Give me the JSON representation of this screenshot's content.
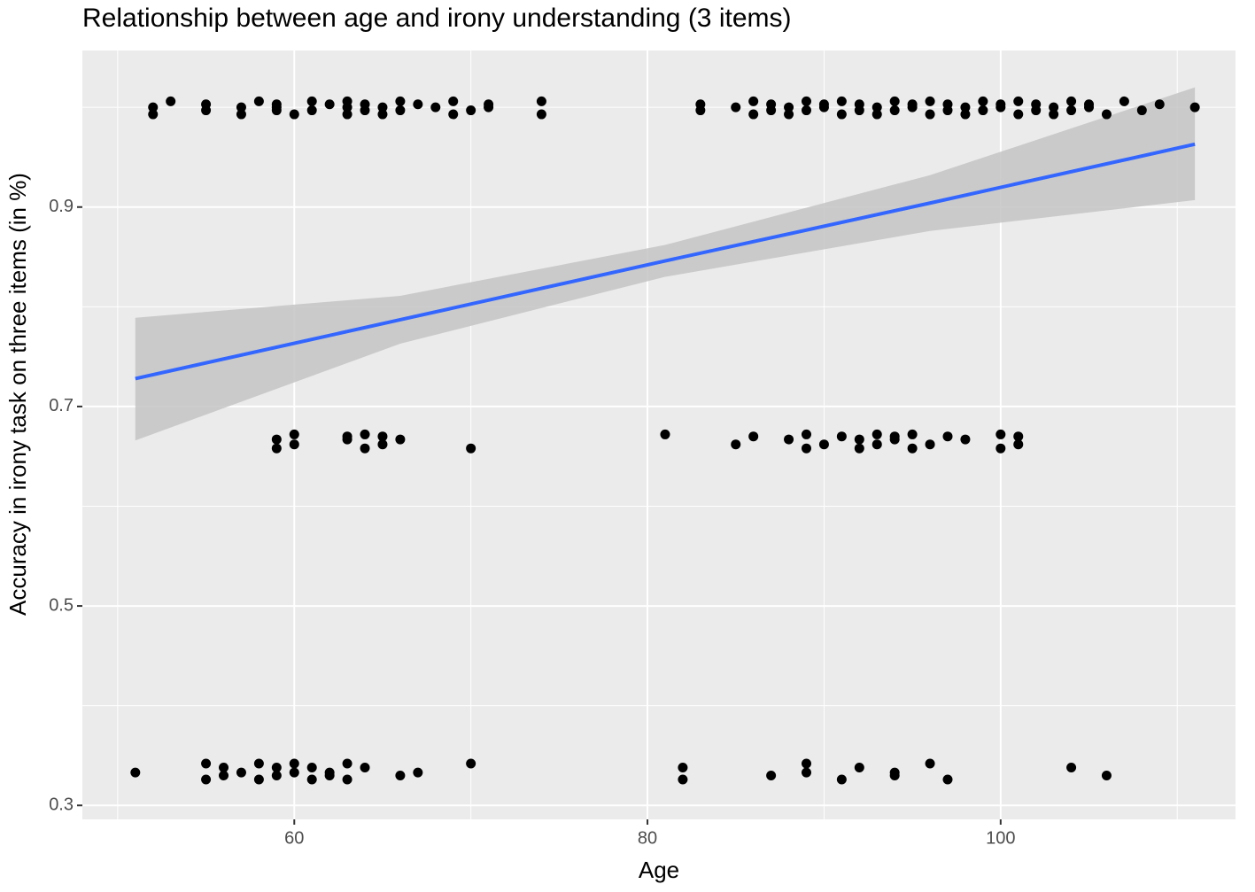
{
  "chart_data": {
    "type": "scatter",
    "title": "Relationship between age and irony understanding (3 items)",
    "x_label": "Age",
    "y_label": "Accuracy in irony task on three items (in %)",
    "xlim": [
      48.0,
      113.3
    ],
    "ylim": [
      0.286,
      1.057
    ],
    "xticks": [
      60,
      80,
      100
    ],
    "yticks": [
      0.3,
      0.5,
      0.7,
      0.9
    ],
    "x_minor_ticks": [
      50,
      70,
      90,
      110
    ],
    "y_minor_ticks": [
      0.4,
      0.6,
      0.8,
      1.0
    ],
    "grid": true,
    "points": {
      "color": "#000000",
      "x": [
        52,
        52,
        53,
        55,
        55,
        57,
        57,
        58,
        59,
        59,
        59,
        60,
        61,
        61,
        62,
        63,
        63,
        63,
        64,
        64,
        65,
        65,
        66,
        66,
        67,
        68,
        69,
        69,
        70,
        71,
        71,
        74,
        74,
        83,
        83,
        85,
        86,
        86,
        87,
        87,
        88,
        88,
        89,
        89,
        90,
        90,
        91,
        91,
        92,
        92,
        93,
        93,
        94,
        94,
        95,
        95,
        96,
        96,
        97,
        97,
        98,
        98,
        99,
        99,
        100,
        100,
        101,
        101,
        102,
        102,
        103,
        103,
        104,
        104,
        105,
        105,
        106,
        107,
        108,
        109,
        111,
        59,
        59,
        60,
        60,
        63,
        63,
        64,
        64,
        65,
        65,
        66,
        70,
        81,
        85,
        86,
        88,
        89,
        89,
        90,
        91,
        92,
        92,
        93,
        93,
        94,
        94,
        95,
        95,
        96,
        97,
        98,
        100,
        100,
        101,
        101,
        51,
        55,
        55,
        56,
        56,
        57,
        58,
        58,
        59,
        59,
        60,
        60,
        61,
        61,
        62,
        62,
        63,
        63,
        64,
        66,
        67,
        70,
        82,
        82,
        87,
        89,
        89,
        91,
        92,
        94,
        94,
        96,
        97,
        104,
        106
      ],
      "y": [
        1.0,
        0.993,
        1.006,
        0.997,
        1.003,
        1.0,
        0.993,
        1.006,
        0.997,
        1.003,
        1.0,
        0.993,
        1.006,
        0.997,
        1.003,
        1.0,
        0.993,
        1.006,
        0.997,
        1.003,
        1.0,
        0.993,
        1.006,
        0.997,
        1.003,
        1.0,
        0.993,
        1.006,
        0.997,
        1.003,
        1.0,
        0.993,
        1.006,
        0.997,
        1.003,
        1.0,
        0.993,
        1.006,
        0.997,
        1.003,
        1.0,
        0.993,
        1.006,
        0.997,
        1.003,
        1.0,
        0.993,
        1.006,
        0.997,
        1.003,
        1.0,
        0.993,
        1.006,
        0.997,
        1.003,
        1.0,
        0.993,
        1.006,
        0.997,
        1.003,
        1.0,
        0.993,
        1.006,
        0.997,
        1.003,
        1.0,
        0.993,
        1.006,
        0.997,
        1.003,
        1.0,
        0.993,
        1.006,
        0.997,
        1.003,
        1.0,
        0.993,
        1.006,
        0.997,
        1.003,
        1.0,
        0.667,
        0.658,
        0.672,
        0.662,
        0.67,
        0.667,
        0.658,
        0.672,
        0.662,
        0.67,
        0.667,
        0.658,
        0.672,
        0.662,
        0.67,
        0.667,
        0.658,
        0.672,
        0.662,
        0.67,
        0.667,
        0.658,
        0.672,
        0.662,
        0.67,
        0.667,
        0.658,
        0.672,
        0.662,
        0.67,
        0.667,
        0.658,
        0.672,
        0.662,
        0.67,
        0.333,
        0.342,
        0.326,
        0.338,
        0.33,
        0.333,
        0.342,
        0.326,
        0.338,
        0.33,
        0.333,
        0.342,
        0.326,
        0.338,
        0.33,
        0.333,
        0.342,
        0.326,
        0.338,
        0.33,
        0.333,
        0.342,
        0.326,
        0.338,
        0.33,
        0.333,
        0.342,
        0.326,
        0.338,
        0.33,
        0.333,
        0.342,
        0.326,
        0.338,
        0.33
      ]
    },
    "fit": {
      "color": "#3366ff",
      "band_color": "#c4c4c4",
      "x": [
        51,
        66,
        81,
        96,
        111
      ],
      "y": [
        0.728,
        0.787,
        0.846,
        0.904,
        0.963
      ],
      "lower": [
        0.666,
        0.763,
        0.83,
        0.876,
        0.907
      ],
      "upper": [
        0.789,
        0.811,
        0.862,
        0.932,
        1.02
      ]
    }
  }
}
